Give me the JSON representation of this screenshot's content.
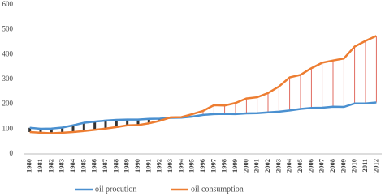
{
  "chart_data": {
    "type": "line",
    "categories": [
      "1980",
      "1981",
      "1982",
      "1983",
      "1984",
      "1985",
      "1986",
      "1987",
      "1988",
      "1989",
      "1990",
      "1991",
      "1992",
      "1993",
      "1994",
      "1995",
      "1996",
      "1997",
      "1998",
      "1999",
      "2000",
      "2001",
      "2002",
      "2003",
      "2004",
      "2005",
      "2006",
      "2007",
      "2008",
      "2009",
      "2010",
      "2011",
      "2012"
    ],
    "series": [
      {
        "name": "oil procution",
        "color": "#4a90d0",
        "values": [
          105,
          101,
          102,
          106,
          115,
          125,
          130,
          134,
          137,
          138,
          138,
          141,
          142,
          145,
          146,
          150,
          157,
          160,
          161,
          160,
          163,
          164,
          167,
          170,
          175,
          181,
          185,
          186,
          190,
          189,
          203,
          203,
          207
        ]
      },
      {
        "name": "oil consumption",
        "color": "#ed7d31",
        "values": [
          88,
          85,
          83,
          85,
          88,
          92,
          97,
          102,
          108,
          115,
          116,
          123,
          133,
          147,
          148,
          160,
          173,
          196,
          195,
          205,
          223,
          228,
          245,
          271,
          308,
          318,
          345,
          367,
          376,
          384,
          432,
          455,
          475
        ]
      }
    ],
    "ylim": [
      0,
      600
    ],
    "yticks": [
      0,
      100,
      200,
      300,
      400,
      500,
      600
    ],
    "legend": "bottom"
  }
}
